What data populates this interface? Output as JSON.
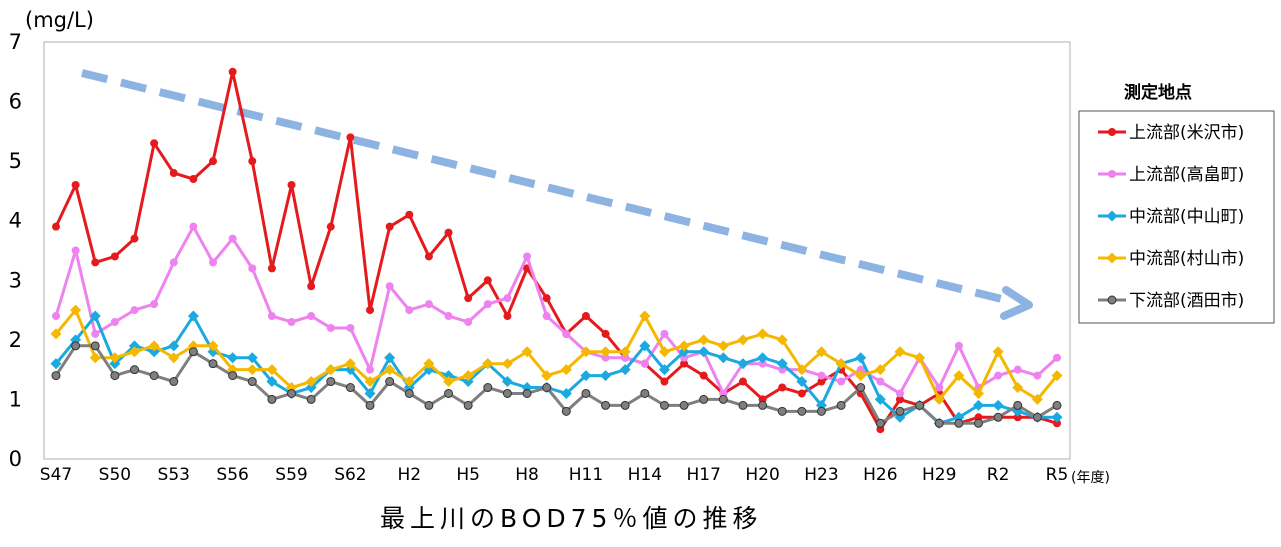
{
  "chart_data": {
    "type": "line",
    "title": "最上川のBOD75％値の推移",
    "ylabel": "(mg/L)",
    "xlabel": "(年度)",
    "ylim": [
      0,
      7
    ],
    "yticks": [
      0,
      1,
      2,
      3,
      4,
      5,
      6,
      7
    ],
    "grid": false,
    "legend_title": "測定地点",
    "legend_position": "right",
    "categories": [
      "S47",
      "S48",
      "S49",
      "S50",
      "S51",
      "S52",
      "S53",
      "S54",
      "S55",
      "S56",
      "S57",
      "S58",
      "S59",
      "S60",
      "S61",
      "S62",
      "S63",
      "H1",
      "H2",
      "H3",
      "H4",
      "H5",
      "H6",
      "H7",
      "H8",
      "H9",
      "H10",
      "H11",
      "H12",
      "H13",
      "H14",
      "H15",
      "H16",
      "H17",
      "H18",
      "H19",
      "H20",
      "H21",
      "H22",
      "H23",
      "H24",
      "H25",
      "H26",
      "H27",
      "H28",
      "H29",
      "H30",
      "R1",
      "R2",
      "R3",
      "R4",
      "R5"
    ],
    "tick_labels": [
      "S47",
      "S50",
      "S53",
      "S56",
      "S59",
      "S62",
      "H2",
      "H5",
      "H8",
      "H11",
      "H14",
      "H17",
      "H20",
      "H23",
      "H26",
      "H29",
      "R2",
      "R5"
    ],
    "trend_arrow": {
      "label": "decreasing trend",
      "color": "#8DB3E2"
    },
    "series": [
      {
        "name": "上流部(米沢市)",
        "color": "#E41A1C",
        "marker": "circle",
        "values": [
          3.9,
          4.6,
          3.3,
          3.4,
          3.7,
          5.3,
          4.8,
          4.7,
          5.0,
          6.5,
          5.0,
          3.2,
          4.6,
          2.9,
          3.9,
          5.4,
          2.5,
          3.9,
          4.1,
          3.4,
          3.8,
          2.7,
          3.0,
          2.4,
          3.2,
          2.7,
          2.1,
          2.4,
          2.1,
          1.7,
          1.6,
          1.3,
          1.6,
          1.4,
          1.1,
          1.3,
          1.0,
          1.2,
          1.1,
          1.3,
          1.5,
          1.1,
          0.5,
          1.0,
          0.9,
          1.1,
          0.6,
          0.7,
          0.7,
          0.7,
          0.7,
          0.6
        ]
      },
      {
        "name": "上流部(高畠町)",
        "color": "#EE82EE",
        "marker": "circle",
        "values": [
          2.4,
          3.5,
          2.1,
          2.3,
          2.5,
          2.6,
          3.3,
          3.9,
          3.3,
          3.7,
          3.2,
          2.4,
          2.3,
          2.4,
          2.2,
          2.2,
          1.5,
          2.9,
          2.5,
          2.6,
          2.4,
          2.3,
          2.6,
          2.7,
          3.4,
          2.4,
          2.1,
          1.8,
          1.7,
          1.7,
          1.6,
          2.1,
          1.7,
          1.8,
          1.1,
          1.6,
          1.6,
          1.5,
          1.5,
          1.4,
          1.3,
          1.5,
          1.3,
          1.1,
          1.7,
          1.2,
          1.9,
          1.2,
          1.4,
          1.5,
          1.4,
          1.7
        ]
      },
      {
        "name": "中流部(中山町)",
        "color": "#1BA9E0",
        "marker": "diamond",
        "values": [
          1.6,
          2.0,
          2.4,
          1.6,
          1.9,
          1.8,
          1.9,
          2.4,
          1.8,
          1.7,
          1.7,
          1.3,
          1.1,
          1.2,
          1.5,
          1.5,
          1.1,
          1.7,
          1.2,
          1.5,
          1.4,
          1.3,
          1.6,
          1.3,
          1.2,
          1.2,
          1.1,
          1.4,
          1.4,
          1.5,
          1.9,
          1.5,
          1.8,
          1.8,
          1.7,
          1.6,
          1.7,
          1.6,
          1.3,
          0.9,
          1.6,
          1.7,
          1.0,
          0.7,
          0.9,
          0.6,
          0.7,
          0.9,
          0.9,
          0.8,
          0.7,
          0.7
        ]
      },
      {
        "name": "中流部(村山市)",
        "color": "#F5B800",
        "marker": "diamond",
        "values": [
          2.1,
          2.5,
          1.7,
          1.7,
          1.8,
          1.9,
          1.7,
          1.9,
          1.9,
          1.5,
          1.5,
          1.5,
          1.2,
          1.3,
          1.5,
          1.6,
          1.3,
          1.5,
          1.3,
          1.6,
          1.3,
          1.4,
          1.6,
          1.6,
          1.8,
          1.4,
          1.5,
          1.8,
          1.8,
          1.8,
          2.4,
          1.8,
          1.9,
          2.0,
          1.9,
          2.0,
          2.1,
          2.0,
          1.5,
          1.8,
          1.6,
          1.4,
          1.5,
          1.8,
          1.7,
          1.0,
          1.4,
          1.1,
          1.8,
          1.2,
          1.0,
          1.4
        ]
      },
      {
        "name": "下流部(酒田市)",
        "color": "#7F7F7F",
        "marker": "circle",
        "values": [
          1.4,
          1.9,
          1.9,
          1.4,
          1.5,
          1.4,
          1.3,
          1.8,
          1.6,
          1.4,
          1.3,
          1.0,
          1.1,
          1.0,
          1.3,
          1.2,
          0.9,
          1.3,
          1.1,
          0.9,
          1.1,
          0.9,
          1.2,
          1.1,
          1.1,
          1.2,
          0.8,
          1.1,
          0.9,
          0.9,
          1.1,
          0.9,
          0.9,
          1.0,
          1.0,
          0.9,
          0.9,
          0.8,
          0.8,
          0.8,
          0.9,
          1.2,
          0.6,
          0.8,
          0.9,
          0.6,
          0.6,
          0.6,
          0.7,
          0.9,
          0.7,
          0.9
        ]
      }
    ]
  }
}
